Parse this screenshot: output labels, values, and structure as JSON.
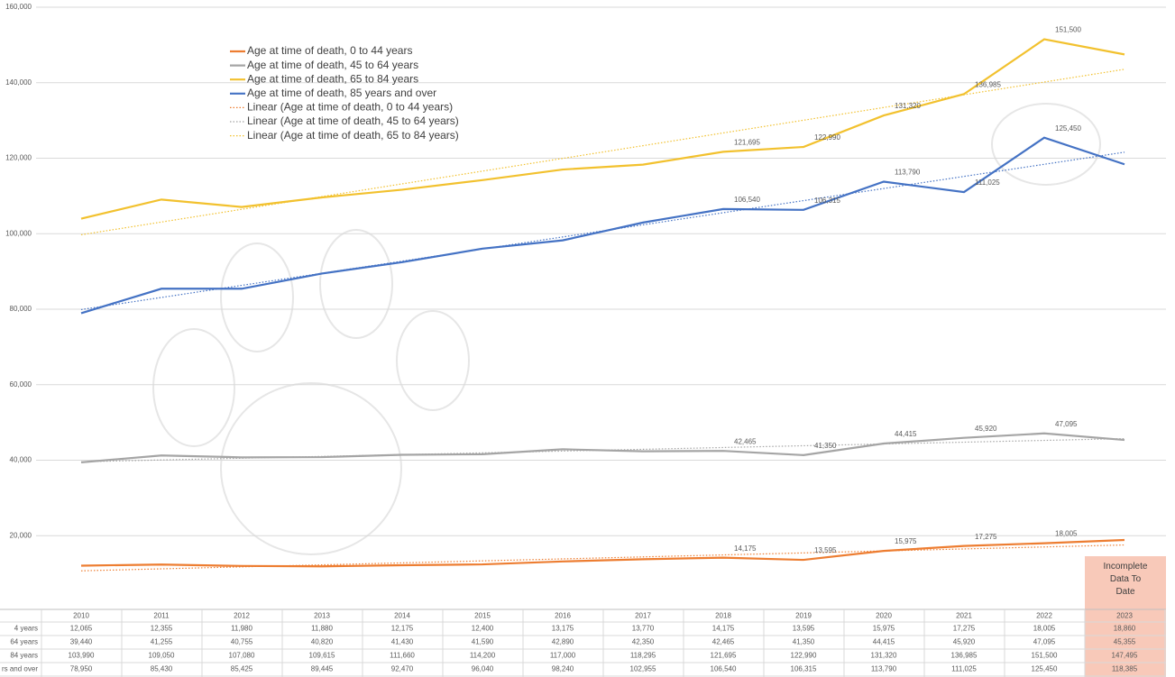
{
  "chart_data": {
    "type": "line",
    "categories": [
      "2010",
      "2011",
      "2012",
      "2013",
      "2014",
      "2015",
      "2016",
      "2017",
      "2018",
      "2019",
      "2020",
      "2021",
      "2022",
      "2023"
    ],
    "ylim": [
      0,
      160000
    ],
    "yticks": [
      {
        "value": 20000,
        "label": "20,000"
      },
      {
        "value": 40000,
        "label": "40,000"
      },
      {
        "value": 60000,
        "label": "60,000"
      },
      {
        "value": 80000,
        "label": "80,000"
      },
      {
        "value": 100000,
        "label": "100,000"
      },
      {
        "value": 120000,
        "label": "120,000"
      },
      {
        "value": 140000,
        "label": "140,000"
      },
      {
        "value": 160000,
        "label": "160,000"
      }
    ],
    "grid": true,
    "series": [
      {
        "name": "Age at time of death, 0 to 44 years",
        "color": "#ed7d31",
        "values": [
          12065,
          12355,
          11980,
          11880,
          12175,
          12400,
          13175,
          13770,
          14175,
          13595,
          15975,
          17275,
          18005,
          18860
        ],
        "value_labels": [
          null,
          null,
          null,
          null,
          null,
          null,
          null,
          null,
          "14,175",
          "13,595",
          "15,975",
          "17,275",
          "18,005",
          null
        ],
        "trendline": {
          "name": "Linear (Age at time of death, 0 to 44 years)",
          "color": "#ed7d31"
        }
      },
      {
        "name": "Age at time of death, 45 to 64 years",
        "color": "#a5a5a5",
        "values": [
          39440,
          41255,
          40755,
          40820,
          41430,
          41590,
          42890,
          42350,
          42465,
          41350,
          44415,
          45920,
          47095,
          45355
        ],
        "value_labels": [
          null,
          null,
          null,
          null,
          null,
          null,
          null,
          null,
          "42,465",
          "41,350",
          "44,415",
          "45,920",
          "47,095",
          null
        ],
        "trendline": {
          "name": "Linear (Age at time of death, 45 to 64 years)",
          "color": "#a5a5a5"
        }
      },
      {
        "name": "Age at time of death, 65 to 84 years",
        "color": "#f2c12e",
        "values": [
          103990,
          109050,
          107080,
          109615,
          111660,
          114200,
          117000,
          118295,
          121695,
          122990,
          131320,
          136985,
          151500,
          147495
        ],
        "value_labels": [
          null,
          null,
          null,
          null,
          null,
          null,
          null,
          null,
          "121,695",
          "122,990",
          "131,320",
          "136,985",
          "151,500",
          null
        ],
        "trendline": {
          "name": "Linear (Age at time of death, 65 to 84 years)",
          "color": "#f2c12e"
        }
      },
      {
        "name": "Age at time of death, 85 years and over",
        "color": "#4472c4",
        "values": [
          78950,
          85430,
          85425,
          89445,
          92470,
          96040,
          98240,
          102955,
          106540,
          106315,
          113790,
          111025,
          125450,
          118385
        ],
        "value_labels": [
          null,
          null,
          null,
          null,
          null,
          null,
          null,
          null,
          "106,540",
          "106,315",
          "113,790",
          "111,025",
          "125,450",
          null
        ],
        "trendline": {
          "color": "#4472c4"
        }
      }
    ],
    "annotation": "Incomplete Data To Date",
    "table": {
      "rows": [
        {
          "label": "4 years",
          "cells": [
            "12,065",
            "12,355",
            "11,980",
            "11,880",
            "12,175",
            "12,400",
            "13,175",
            "13,770",
            "14,175",
            "13,595",
            "15,975",
            "17,275",
            "18,005",
            "18,860"
          ]
        },
        {
          "label": "64 years",
          "cells": [
            "39,440",
            "41,255",
            "40,755",
            "40,820",
            "41,430",
            "41,590",
            "42,890",
            "42,350",
            "42,465",
            "41,350",
            "44,415",
            "45,920",
            "47,095",
            "45,355"
          ]
        },
        {
          "label": "84 years",
          "cells": [
            "103,990",
            "109,050",
            "107,080",
            "109,615",
            "111,660",
            "114,200",
            "117,000",
            "118,295",
            "121,695",
            "122,990",
            "131,320",
            "136,985",
            "151,500",
            "147,495"
          ]
        },
        {
          "label": "rs and over",
          "cells": [
            "78,950",
            "85,430",
            "85,425",
            "89,445",
            "92,470",
            "96,040",
            "98,240",
            "102,955",
            "106,540",
            "106,315",
            "113,790",
            "111,025",
            "125,450",
            "118,385"
          ]
        }
      ]
    }
  }
}
